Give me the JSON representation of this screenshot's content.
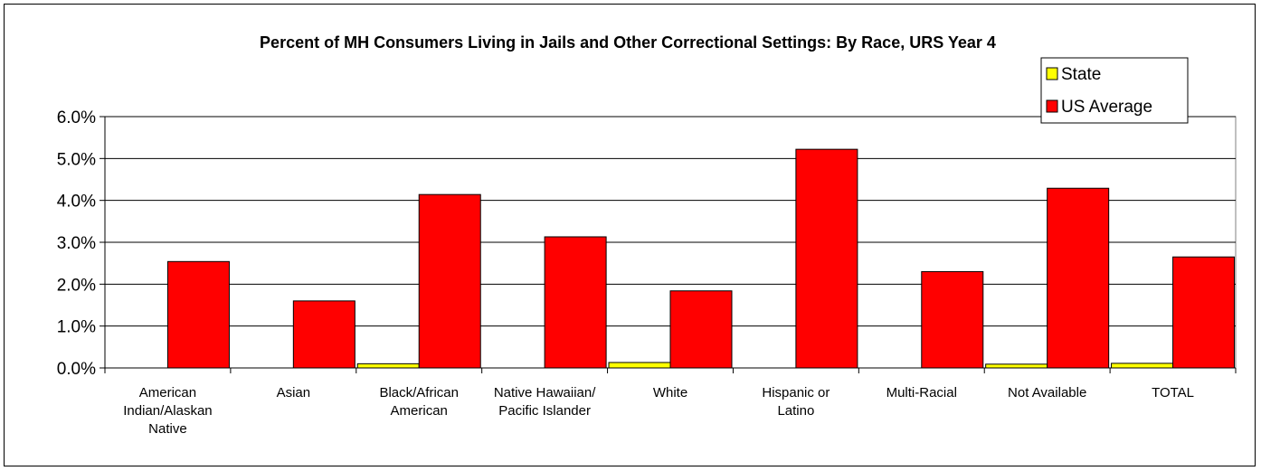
{
  "chart_data": {
    "type": "bar",
    "title": "Percent of MH Consumers Living in Jails and Other Correctional Settings: By Race, URS Year 4",
    "categories": [
      [
        "American",
        "Indian/Alaskan",
        "Native"
      ],
      [
        "Asian"
      ],
      [
        "Black/African",
        "American"
      ],
      [
        "Native Hawaiian/",
        "Pacific Islander"
      ],
      [
        "White"
      ],
      [
        "Hispanic or",
        "Latino"
      ],
      [
        "Multi-Racial"
      ],
      [
        "Not Available"
      ],
      [
        "TOTAL"
      ]
    ],
    "series": [
      {
        "name": "State",
        "color": "#ffff00",
        "values": [
          0.0,
          0.0,
          0.1,
          0.0,
          0.13,
          0.0,
          0.0,
          0.09,
          0.11
        ]
      },
      {
        "name": "US Average",
        "color": "#ff0000",
        "values": [
          2.54,
          1.6,
          4.14,
          3.13,
          1.84,
          5.22,
          2.3,
          4.29,
          2.65
        ]
      }
    ],
    "ylim": [
      0,
      6
    ],
    "yticks": [
      "0.0%",
      "1.0%",
      "2.0%",
      "3.0%",
      "4.0%",
      "5.0%",
      "6.0%"
    ],
    "grid": true,
    "legend_position": "top-right"
  }
}
